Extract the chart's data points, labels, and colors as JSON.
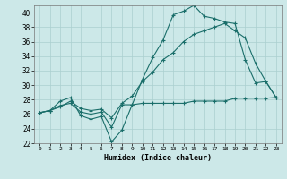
{
  "title": "",
  "xlabel": "Humidex (Indice chaleur)",
  "bg_color": "#cce8e8",
  "line_color": "#1a6e6a",
  "grid_color": "#aacfcf",
  "xlim": [
    -0.5,
    23.5
  ],
  "ylim": [
    22,
    41
  ],
  "yticks": [
    22,
    24,
    26,
    28,
    30,
    32,
    34,
    36,
    38,
    40
  ],
  "xticks": [
    0,
    1,
    2,
    3,
    4,
    5,
    6,
    7,
    8,
    9,
    10,
    11,
    12,
    13,
    14,
    15,
    16,
    17,
    18,
    19,
    20,
    21,
    22,
    23
  ],
  "line1_x": [
    0,
    1,
    2,
    3,
    4,
    5,
    6,
    7,
    8,
    9,
    10,
    11,
    12,
    13,
    14,
    15,
    16,
    17,
    18,
    19,
    20,
    21,
    22,
    23
  ],
  "line1_y": [
    26.2,
    26.5,
    27.8,
    28.3,
    25.8,
    25.3,
    25.7,
    22.2,
    23.8,
    27.3,
    30.8,
    33.8,
    36.2,
    39.7,
    40.2,
    41.0,
    39.5,
    39.2,
    38.7,
    38.5,
    33.5,
    30.3,
    30.5,
    28.3
  ],
  "line2_x": [
    0,
    1,
    2,
    3,
    4,
    5,
    6,
    7,
    8,
    9,
    10,
    11,
    12,
    13,
    14,
    15,
    16,
    17,
    18,
    19,
    20,
    21,
    22,
    23
  ],
  "line2_y": [
    26.2,
    26.5,
    27.2,
    27.5,
    26.3,
    26.0,
    26.3,
    24.2,
    27.3,
    27.3,
    27.5,
    27.5,
    27.5,
    27.5,
    27.5,
    27.8,
    27.8,
    27.8,
    27.8,
    28.2,
    28.2,
    28.2,
    28.2,
    28.3
  ],
  "line3_x": [
    0,
    1,
    2,
    3,
    4,
    5,
    6,
    7,
    8,
    9,
    10,
    11,
    12,
    13,
    14,
    15,
    16,
    17,
    18,
    19,
    20,
    21,
    22,
    23
  ],
  "line3_y": [
    26.2,
    26.5,
    27.0,
    27.8,
    26.8,
    26.5,
    26.7,
    25.5,
    27.5,
    28.5,
    30.5,
    31.8,
    33.5,
    34.5,
    36.0,
    37.0,
    37.5,
    38.0,
    38.5,
    37.5,
    36.5,
    33.0,
    30.5,
    28.3
  ]
}
